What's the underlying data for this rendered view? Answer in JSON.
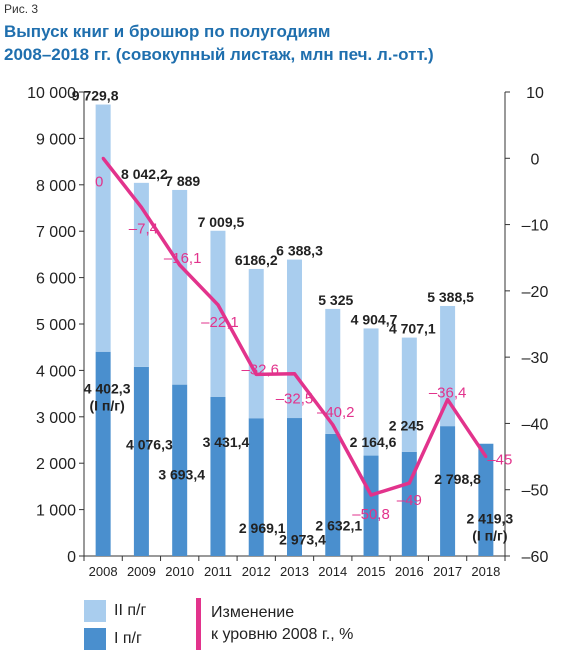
{
  "figure_label": "Рис. 3",
  "title_lines": [
    "Выпуск книг и брошюр по полугодиям",
    "2008–2018 гг. (совокупный листаж, млн печ. л.-отт.)"
  ],
  "colors": {
    "h1": "#4a8fce",
    "h2": "#a9cdee",
    "line": "#e2338c",
    "axis": "#333333"
  },
  "legend": {
    "h2": "II п/г",
    "h1": "I п/г",
    "line_l1": "Изменение",
    "line_l2": "к уровню 2008 г., %"
  },
  "chart_data": {
    "type": "bar",
    "stacked": true,
    "categories": [
      "2008",
      "2009",
      "2010",
      "2011",
      "2012",
      "2013",
      "2014",
      "2015",
      "2016",
      "2017",
      "2018"
    ],
    "series": [
      {
        "name": "I п/г",
        "values": [
          4402.3,
          4076.3,
          3693.4,
          3431.4,
          2969.1,
          2973.4,
          2632.1,
          2164.6,
          2245,
          2798.8,
          2419.3
        ]
      },
      {
        "name": "II п/г",
        "values": [
          5327.5,
          3965.9,
          4195.6,
          3578.1,
          3217.1,
          3414.9,
          2692.9,
          2740.1,
          2462.1,
          2589.7,
          null
        ]
      }
    ],
    "totals": [
      9729.8,
      8042.2,
      7889,
      7009.5,
      6186.2,
      6388.3,
      5325,
      4904.7,
      4707.1,
      5388.5,
      null
    ],
    "total_labels": [
      "9 729,8",
      "8 042,2",
      "7 889",
      "7 009,5",
      "6186,2",
      "6 388,3",
      "5 325",
      "4 904,7",
      "4 707,1",
      "5 388,5",
      ""
    ],
    "h1_labels": [
      "4 402,3\n(I п/г)",
      "4 076,3",
      "3 693,4",
      "3 431,4",
      "2 969,1",
      "2 973,4",
      "2 632,1",
      "2 164,6",
      "2 245",
      "2 798,8",
      "2 419,3\n(I п/г)"
    ],
    "line_series": {
      "name": "Изменение к уровню 2008 г., %",
      "values": [
        0,
        -7.4,
        -16.1,
        -22.1,
        -32.6,
        -32.5,
        -40.2,
        -50.8,
        -49,
        -36.4,
        -45
      ],
      "labels": [
        "0",
        "–7,4",
        "–16,1",
        "–22,1",
        "–32,6",
        "–32,5",
        "–40,2",
        "–50,8",
        "–49",
        "–36,4",
        "–45"
      ]
    },
    "ylim": [
      0,
      10000
    ],
    "y_ticks": [
      0,
      1000,
      2000,
      3000,
      4000,
      5000,
      6000,
      7000,
      8000,
      9000,
      10000
    ],
    "y_tick_labels": [
      "0",
      "1 000",
      "2 000",
      "3 000",
      "4 000",
      "5 000",
      "6 000",
      "7 000",
      "8 000",
      "9 000",
      "10 000"
    ],
    "y2lim": [
      -60,
      10
    ],
    "y2_ticks": [
      10,
      0,
      -10,
      -20,
      -30,
      -40,
      -50,
      -60
    ],
    "y2_tick_labels": [
      "10",
      "0",
      "–10",
      "–20",
      "–30",
      "–40",
      "–50",
      "–60"
    ],
    "grid": false
  }
}
